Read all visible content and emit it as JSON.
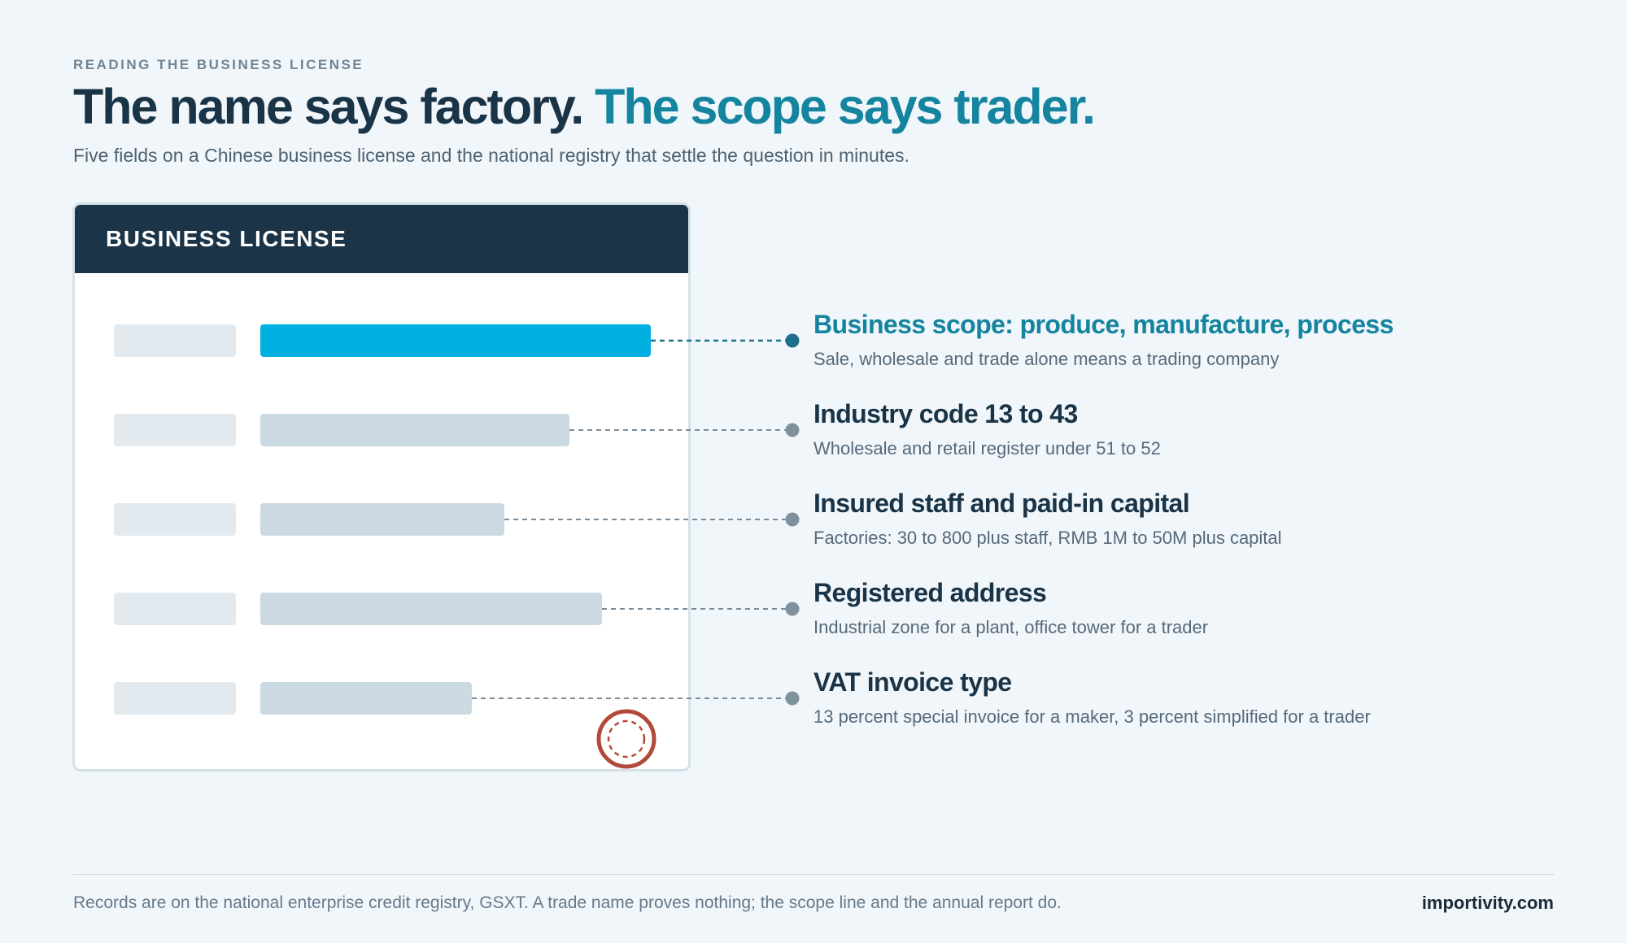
{
  "eyebrow": "READING THE BUSINESS LICENSE",
  "headline": {
    "part1": "The name says factory.",
    "part2": "The scope says trader."
  },
  "subtitle": "Five fields on a Chinese business license and the national registry that settle the question in minutes.",
  "license": {
    "title": "BUSINESS LICENSE"
  },
  "fields": [
    {
      "title": "Business scope: produce, manufacture, process",
      "description": "Sale, wholesale and trade alone means a trading company",
      "highlighted": true
    },
    {
      "title": "Industry code 13 to 43",
      "description": "Wholesale and retail register under 51 to 52",
      "highlighted": false
    },
    {
      "title": "Insured staff and paid-in capital",
      "description": "Factories: 30 to 800 plus staff, RMB 1M to 50M plus capital",
      "highlighted": false
    },
    {
      "title": "Registered address",
      "description": "Industrial zone for a plant, office tower for a trader",
      "highlighted": false
    },
    {
      "title": "VAT invoice type",
      "description": "13 percent special invoice for a maker, 3 percent simplified for a trader",
      "highlighted": false
    }
  ],
  "footer": {
    "note": "Records are on the national enterprise credit registry, GSXT. A trade name proves nothing; the scope line and the annual report do.",
    "brand": "importivity.com"
  },
  "colors": {
    "background": "#f1f6fa",
    "navy": "#1b3447",
    "accent": "#14849f",
    "highlight_bar": "#00b0e0",
    "bar": "#cbd9e3",
    "label_stub": "#e2eaf0",
    "stamp": "#b24a3a"
  },
  "icons": {
    "stamp": "seal-stamp-icon"
  }
}
